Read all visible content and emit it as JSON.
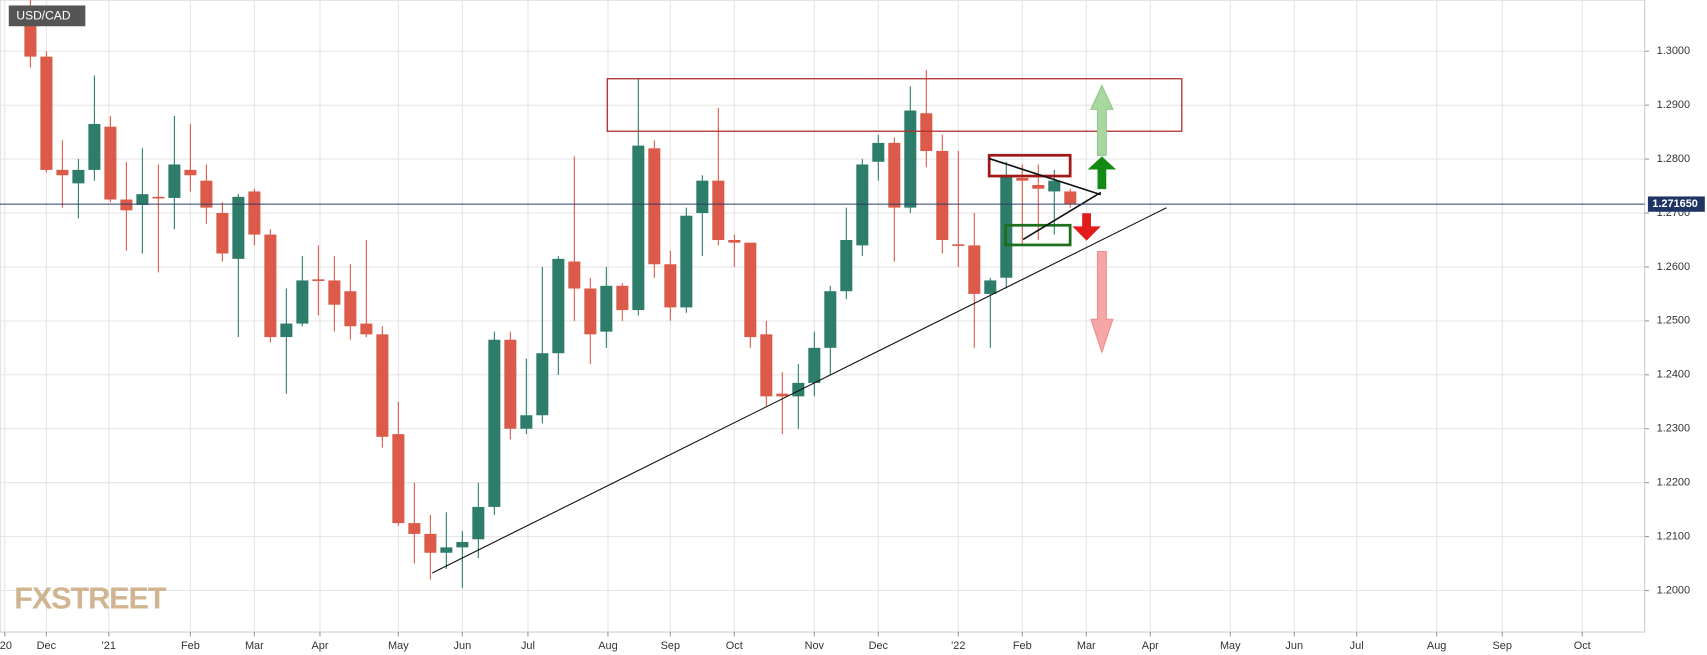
{
  "chart_data": {
    "type": "candlestick",
    "title": "USD/CAD",
    "watermark": "FXSTREET",
    "up_color": "#2e7d6b",
    "down_color": "#dc5a4a",
    "grid": true,
    "open": [
      1.308,
      1.299,
      1.278,
      1.2755,
      1.278,
      1.286,
      1.2725,
      1.2715,
      1.273,
      1.2728,
      1.278,
      1.276,
      1.27,
      1.2615,
      1.274,
      1.266,
      1.247,
      1.2495,
      1.2577,
      1.2575,
      1.2555,
      1.2495,
      1.2475,
      1.229,
      1.2125,
      1.2105,
      1.207,
      1.208,
      1.2095,
      1.2155,
      1.2465,
      1.23,
      1.2325,
      1.244,
      1.261,
      1.256,
      1.248,
      1.2565,
      1.252,
      1.282,
      1.2605,
      1.2525,
      1.27,
      1.276,
      1.265,
      1.2645,
      1.2475,
      1.2365,
      1.236,
      1.2385,
      1.245,
      1.2555,
      1.264,
      1.2795,
      1.283,
      1.271,
      1.2885,
      1.2815,
      1.2642,
      1.264,
      1.255,
      1.258,
      1.2765,
      1.2752,
      1.274,
      1.274
    ],
    "high": [
      1.31,
      1.3,
      1.2835,
      1.28,
      1.2955,
      1.288,
      1.2795,
      1.282,
      1.279,
      1.288,
      1.2865,
      1.279,
      1.272,
      1.2735,
      1.2745,
      1.267,
      1.256,
      1.262,
      1.264,
      1.262,
      1.2605,
      1.265,
      1.249,
      1.235,
      1.22,
      1.214,
      1.2145,
      1.211,
      1.22,
      1.248,
      1.248,
      1.243,
      1.26,
      1.262,
      1.2805,
      1.258,
      1.26,
      1.257,
      1.295,
      1.2835,
      1.263,
      1.271,
      1.277,
      1.2895,
      1.266,
      1.2645,
      1.25,
      1.2405,
      1.242,
      1.248,
      1.2565,
      1.271,
      1.28,
      1.2845,
      1.284,
      1.2935,
      1.2965,
      1.2845,
      1.2815,
      1.27,
      1.258,
      1.2795,
      1.279,
      1.279,
      1.278,
      1.2745
    ],
    "low": [
      1.297,
      1.2775,
      1.271,
      1.269,
      1.276,
      1.272,
      1.263,
      1.2625,
      1.259,
      1.267,
      1.274,
      1.268,
      1.261,
      1.247,
      1.264,
      1.246,
      1.2365,
      1.249,
      1.251,
      1.248,
      1.2465,
      1.247,
      1.2265,
      1.212,
      1.205,
      1.202,
      1.204,
      1.2005,
      1.206,
      1.214,
      1.228,
      1.229,
      1.231,
      1.24,
      1.25,
      1.242,
      1.245,
      1.25,
      1.251,
      1.258,
      1.25,
      1.2515,
      1.262,
      1.264,
      1.26,
      1.245,
      1.234,
      1.229,
      1.23,
      1.236,
      1.24,
      1.254,
      1.262,
      1.276,
      1.261,
      1.27,
      1.2785,
      1.2625,
      1.26,
      1.245,
      1.245,
      1.256,
      1.264,
      1.265,
      1.266,
      1.271
    ],
    "close": [
      1.299,
      1.278,
      1.277,
      1.278,
      1.2865,
      1.2725,
      1.2705,
      1.2735,
      1.2728,
      1.279,
      1.277,
      1.271,
      1.2625,
      1.273,
      1.266,
      1.247,
      1.2495,
      1.2575,
      1.2575,
      1.253,
      1.249,
      1.2475,
      1.2285,
      1.2125,
      1.2105,
      1.207,
      1.208,
      1.209,
      1.2155,
      1.2465,
      1.23,
      1.2325,
      1.244,
      1.2615,
      1.256,
      1.2475,
      1.2565,
      1.252,
      1.2825,
      1.2605,
      1.2525,
      1.2695,
      1.276,
      1.265,
      1.2645,
      1.247,
      1.236,
      1.236,
      1.2385,
      1.245,
      1.2555,
      1.265,
      1.279,
      1.283,
      1.271,
      1.289,
      1.2815,
      1.265,
      1.264,
      1.255,
      1.2575,
      1.277,
      1.276,
      1.2745,
      1.276,
      1.2717
    ],
    "xlim": [
      -1.9,
      100.9
    ],
    "xticks": [
      {
        "value": -1.6,
        "label": "'20"
      },
      {
        "value": 1.0,
        "label": "Dec"
      },
      {
        "value": 4.9,
        "label": "'21"
      },
      {
        "value": 10.0,
        "label": "Feb"
      },
      {
        "value": 14.0,
        "label": "Mar"
      },
      {
        "value": 18.1,
        "label": "Apr"
      },
      {
        "value": 23.0,
        "label": "May"
      },
      {
        "value": 27.0,
        "label": "Jun"
      },
      {
        "value": 31.1,
        "label": "Jul"
      },
      {
        "value": 36.1,
        "label": "Aug"
      },
      {
        "value": 40.0,
        "label": "Sep"
      },
      {
        "value": 44.0,
        "label": "Oct"
      },
      {
        "value": 49.0,
        "label": "Nov"
      },
      {
        "value": 53.0,
        "label": "Dec"
      },
      {
        "value": 58.0,
        "label": "'22"
      },
      {
        "value": 62.0,
        "label": "Feb"
      },
      {
        "value": 66.0,
        "label": "Mar"
      },
      {
        "value": 70.0,
        "label": "Apr"
      },
      {
        "value": 75.0,
        "label": "May"
      },
      {
        "value": 79.0,
        "label": "Jun"
      },
      {
        "value": 82.9,
        "label": "Jul"
      },
      {
        "value": 87.9,
        "label": "Aug"
      },
      {
        "value": 92.0,
        "label": "Sep"
      },
      {
        "value": 97.0,
        "label": "Oct"
      }
    ],
    "ylim": [
      1.1923,
      1.3095
    ],
    "yticks": [
      {
        "value": 1.2,
        "label": "1.2000"
      },
      {
        "value": 1.21,
        "label": "1.2100"
      },
      {
        "value": 1.22,
        "label": "1.2200"
      },
      {
        "value": 1.23,
        "label": "1.2300"
      },
      {
        "value": 1.24,
        "label": "1.2400"
      },
      {
        "value": 1.25,
        "label": "1.2500"
      },
      {
        "value": 1.26,
        "label": "1.2600"
      },
      {
        "value": 1.27,
        "label": "1.2700"
      },
      {
        "value": 1.28,
        "label": "1.2800"
      },
      {
        "value": 1.29,
        "label": "1.2900"
      },
      {
        "value": 1.3,
        "label": "1.3000"
      }
    ],
    "last_price": {
      "value": 1.27165,
      "label": "1.271650"
    }
  }
}
